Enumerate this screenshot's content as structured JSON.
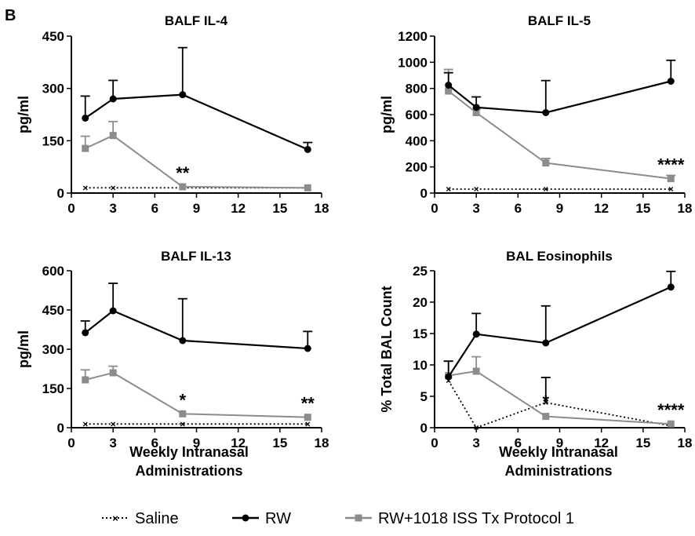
{
  "figure": {
    "panel_letter": "B",
    "xlabel_line1": "Weekly Intranasal",
    "xlabel_line2": "Administrations"
  },
  "colors": {
    "saline": "#000000",
    "rw": "#000000",
    "tx": "#8c8c8c"
  },
  "chart_data": [
    {
      "type": "line",
      "title": "BALF IL-4",
      "ylabel": "pg/ml",
      "xlim": [
        0,
        18
      ],
      "ylim": [
        0,
        450
      ],
      "xticks": [
        0,
        3,
        6,
        9,
        12,
        15,
        18
      ],
      "yticks": [
        0,
        150,
        300,
        450
      ],
      "x": [
        1,
        3,
        8,
        17
      ],
      "series": [
        {
          "name": "Saline",
          "values": [
            15,
            15,
            15,
            15
          ],
          "error": [
            0,
            0,
            0,
            0
          ]
        },
        {
          "name": "RW",
          "values": [
            215,
            270,
            282,
            125
          ],
          "error": [
            63,
            53,
            135,
            20
          ]
        },
        {
          "name": "RW+1018 ISS Tx Protocol 1",
          "values": [
            128,
            165,
            18,
            15
          ],
          "error": [
            35,
            40,
            0,
            0
          ]
        }
      ],
      "annotations": [
        {
          "x": 8,
          "y": 18,
          "text": "**"
        }
      ]
    },
    {
      "type": "line",
      "title": "BALF IL-5",
      "ylabel": "pg/ml",
      "xlim": [
        0,
        18
      ],
      "ylim": [
        0,
        1200
      ],
      "xticks": [
        0,
        3,
        6,
        9,
        12,
        15,
        18
      ],
      "yticks": [
        0,
        200,
        400,
        600,
        800,
        1000,
        1200
      ],
      "x": [
        1,
        3,
        8,
        17
      ],
      "series": [
        {
          "name": "Saline",
          "values": [
            30,
            30,
            30,
            30
          ],
          "error": [
            0,
            0,
            0,
            0
          ]
        },
        {
          "name": "RW",
          "values": [
            825,
            655,
            615,
            855
          ],
          "error": [
            95,
            80,
            245,
            160
          ]
        },
        {
          "name": "RW+1018 ISS Tx Protocol 1",
          "values": [
            780,
            615,
            230,
            110
          ],
          "error": [
            165,
            25,
            35,
            25
          ]
        }
      ],
      "annotations": [
        {
          "x": 17,
          "y": 110,
          "text": "****"
        }
      ]
    },
    {
      "type": "line",
      "title": "BALF IL-13",
      "ylabel": "pg/ml",
      "xlim": [
        0,
        18
      ],
      "ylim": [
        0,
        600
      ],
      "xticks": [
        0,
        3,
        6,
        9,
        12,
        15,
        18
      ],
      "yticks": [
        0,
        150,
        300,
        450,
        600
      ],
      "x": [
        1,
        3,
        8,
        17
      ],
      "series": [
        {
          "name": "Saline",
          "values": [
            14,
            14,
            14,
            14
          ],
          "error": [
            0,
            0,
            0,
            0
          ]
        },
        {
          "name": "RW",
          "values": [
            363,
            447,
            333,
            303
          ],
          "error": [
            45,
            105,
            160,
            65
          ]
        },
        {
          "name": "RW+1018 ISS Tx Protocol 1",
          "values": [
            183,
            210,
            53,
            40
          ],
          "error": [
            38,
            25,
            0,
            0
          ]
        }
      ],
      "annotations": [
        {
          "x": 8,
          "y": 53,
          "text": "*"
        },
        {
          "x": 17,
          "y": 40,
          "text": "**"
        }
      ]
    },
    {
      "type": "line",
      "title": "BAL Eosinophils",
      "ylabel": "% Total BAL Count",
      "xlim": [
        0,
        18
      ],
      "ylim": [
        0,
        25
      ],
      "xticks": [
        0,
        3,
        6,
        9,
        12,
        15,
        18
      ],
      "yticks": [
        0,
        5,
        10,
        15,
        20,
        25
      ],
      "x": [
        1,
        3,
        8,
        17
      ],
      "series": [
        {
          "name": "Saline",
          "values": [
            7.5,
            0,
            4,
            0.3
          ],
          "error": [
            0,
            0,
            4,
            0
          ]
        },
        {
          "name": "RW",
          "values": [
            8.1,
            14.9,
            13.5,
            22.4
          ],
          "error": [
            2.5,
            3.3,
            5.9,
            2.5
          ]
        },
        {
          "name": "RW+1018 ISS Tx Protocol 1",
          "values": [
            8.3,
            9.0,
            1.8,
            0.6
          ],
          "error": [
            2.3,
            2.3,
            0,
            0
          ]
        }
      ],
      "annotations": [
        {
          "x": 8,
          "y": 2,
          "text": "*"
        },
        {
          "x": 17,
          "y": 0.6,
          "text": "****"
        }
      ]
    }
  ],
  "legend": [
    {
      "name": "Saline",
      "label": "Saline"
    },
    {
      "name": "RW",
      "label": "RW"
    },
    {
      "name": "RW+1018 ISS Tx Protocol 1",
      "label": "RW+1018 ISS Tx Protocol 1"
    }
  ]
}
